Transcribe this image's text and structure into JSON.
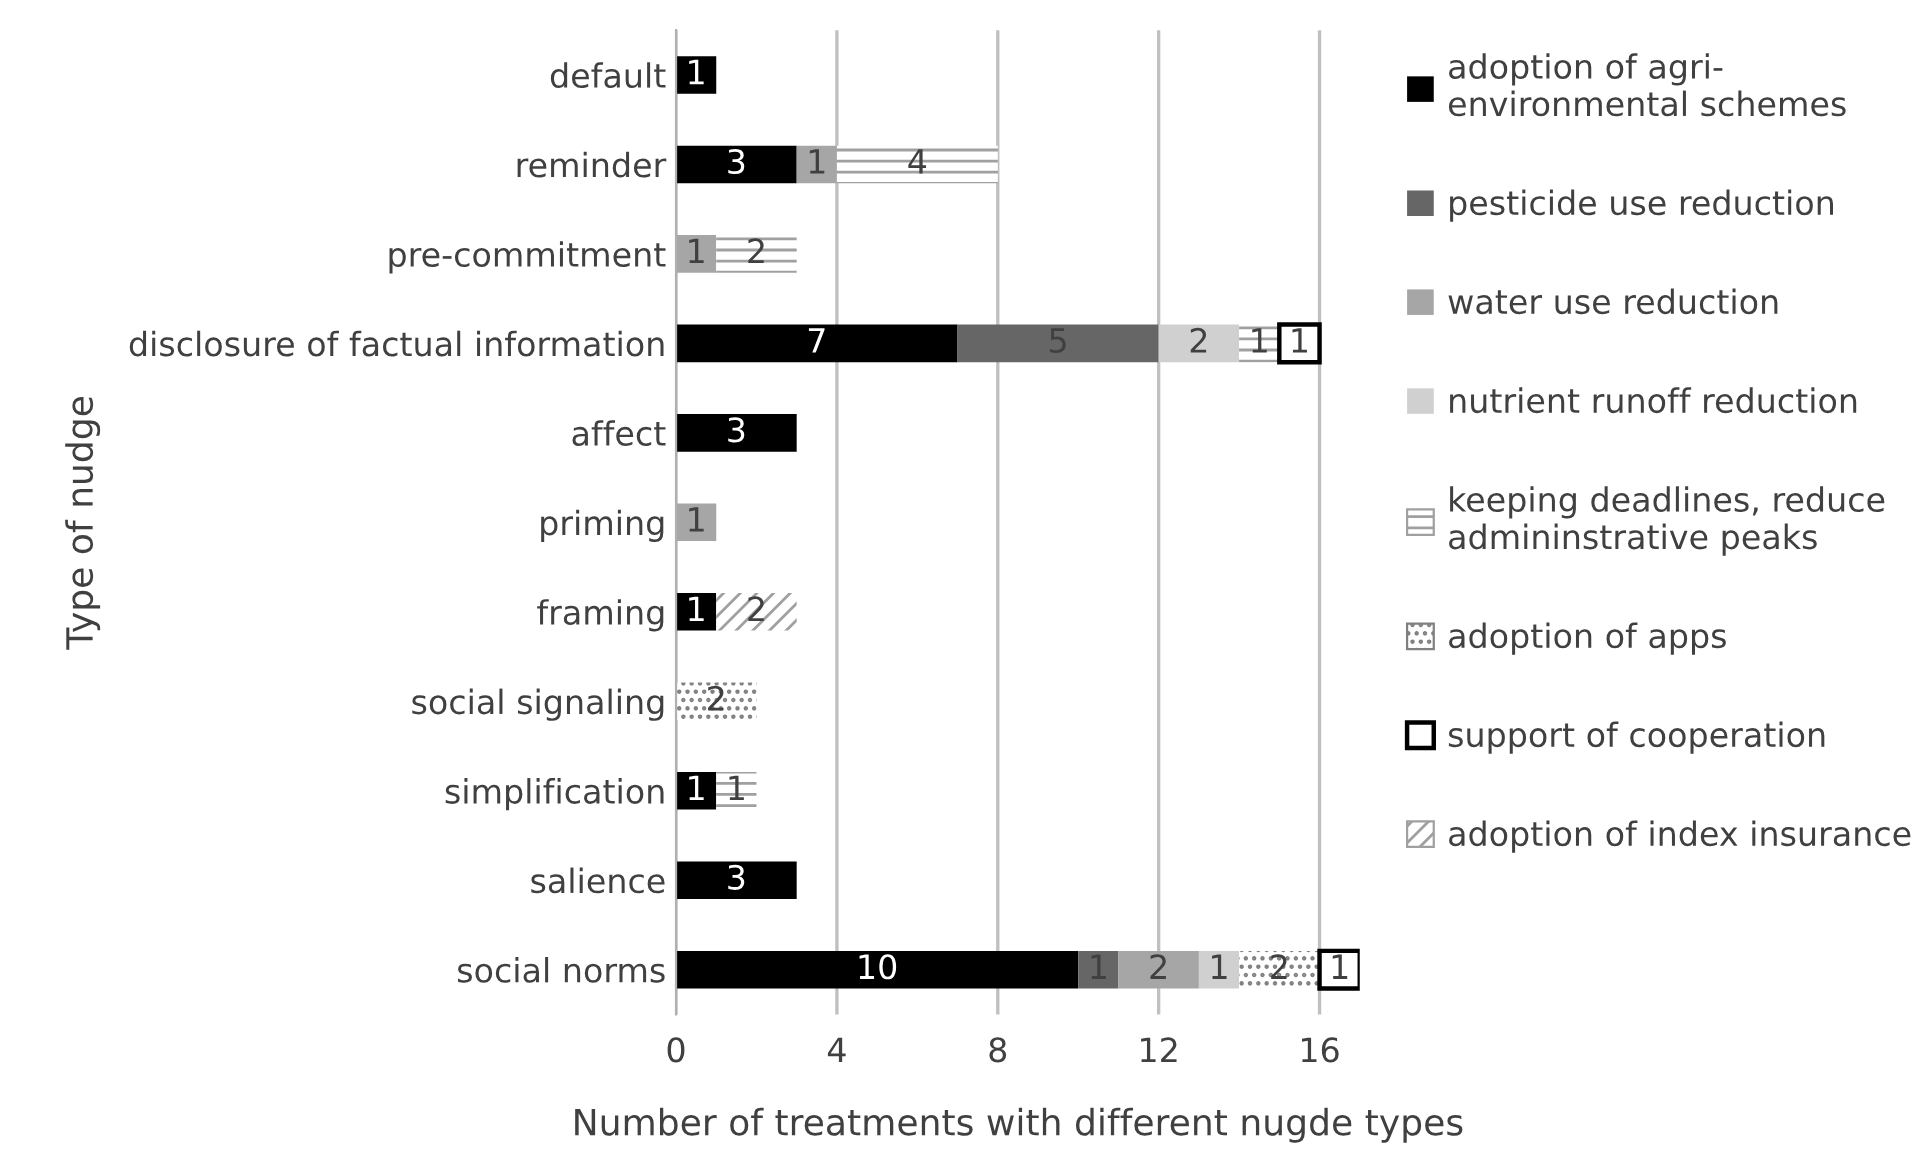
{
  "chart_data": {
    "type": "bar",
    "orientation": "horizontal",
    "stacked": true,
    "data_labels": true,
    "grid": "x",
    "legend": "right",
    "xlabel": "Number of treatments with different nugde types",
    "ylabel": "Type of nudge",
    "categories": [
      "default",
      "reminder",
      "pre-commitment",
      "disclosure of factual information",
      "affect",
      "priming",
      "framing",
      "social signaling",
      "simplification",
      "salience",
      "social norms"
    ],
    "xlim": [
      0,
      17
    ],
    "xticks": [
      0,
      4,
      8,
      12,
      16
    ],
    "series": [
      {
        "name": "adoption of agri-\nenvironmental schemes",
        "color": "#000000",
        "values": [
          1,
          3,
          null,
          7,
          3,
          null,
          1,
          null,
          1,
          3,
          10
        ]
      },
      {
        "name": "pesticide use reduction",
        "color": "#666666",
        "values": [
          null,
          null,
          null,
          5,
          null,
          null,
          null,
          null,
          null,
          null,
          1
        ]
      },
      {
        "name": "water use reduction",
        "color": "#a6a6a6",
        "values": [
          null,
          1,
          1,
          null,
          null,
          1,
          null,
          null,
          null,
          null,
          2
        ]
      },
      {
        "name": "nutrient runoff reduction",
        "color": "#d0d0d0",
        "values": [
          null,
          null,
          null,
          2,
          null,
          null,
          null,
          null,
          null,
          null,
          1
        ]
      },
      {
        "name": "keeping deadlines, reduce\nadmininstrative peaks",
        "color": "#ffffff",
        "values": [
          null,
          4,
          2,
          1,
          null,
          null,
          null,
          null,
          1,
          null,
          null
        ]
      },
      {
        "name": "adoption of apps",
        "color": "#ffffff",
        "values": [
          null,
          null,
          null,
          null,
          null,
          null,
          null,
          2,
          null,
          null,
          2
        ]
      },
      {
        "name": "support of cooperation",
        "color": "#ffffff",
        "values": [
          null,
          null,
          null,
          1,
          null,
          null,
          null,
          null,
          null,
          null,
          1
        ]
      },
      {
        "name": "adoption of index insurance",
        "color": "#ffffff",
        "values": [
          null,
          null,
          null,
          null,
          null,
          null,
          2,
          null,
          null,
          null,
          null
        ]
      }
    ]
  }
}
